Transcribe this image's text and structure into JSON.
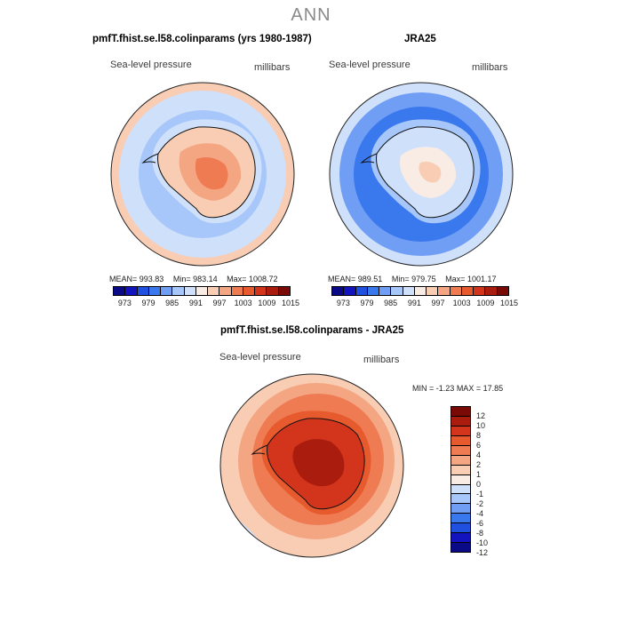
{
  "figure_title": "ANN",
  "palette": {
    "diverging": [
      "#0a0a86",
      "#1414be",
      "#2050e0",
      "#3a78ee",
      "#6f9ef4",
      "#a7c6f9",
      "#cfe0fb",
      "#f8ece4",
      "#f8cdb4",
      "#f4a683",
      "#ef7b53",
      "#e65a2e",
      "#d2351c",
      "#aa1d0e",
      "#7a0a05"
    ]
  },
  "chart_data": [
    {
      "type": "heatmap",
      "projection": "south-polar-stereographic",
      "title": "pmfT.fhist.se.l58.colinparams (yrs 1980-1987)",
      "field_label": "Sea-level pressure",
      "units": "millibars",
      "stats": {
        "mean_label": "MEAN=",
        "mean": "993.83",
        "min_label": "Min=",
        "min": "983.14",
        "max_label": "Max=",
        "max": "1008.72"
      },
      "colorbar": {
        "orientation": "horizontal",
        "tick_labels": [
          "973",
          "979",
          "985",
          "991",
          "997",
          "1003",
          "1009",
          "1015"
        ]
      },
      "field_summary": {
        "ocean_ring_mb": 989,
        "antarctic_interior_mb": 1003,
        "outer_edge_mb": 997
      }
    },
    {
      "type": "heatmap",
      "projection": "south-polar-stereographic",
      "title": "JRA25",
      "field_label": "Sea-level pressure",
      "units": "millibars",
      "stats": {
        "mean_label": "MEAN=",
        "mean": "989.51",
        "min_label": "Min=",
        "min": "979.75",
        "max_label": "Max=",
        "max": "1001.17"
      },
      "colorbar": {
        "orientation": "horizontal",
        "tick_labels": [
          "973",
          "979",
          "985",
          "991",
          "997",
          "1003",
          "1009",
          "1015"
        ]
      },
      "field_summary": {
        "ocean_ring_mb": 983,
        "antarctic_interior_mb": 994,
        "outer_edge_mb": 992
      }
    },
    {
      "type": "heatmap",
      "projection": "south-polar-stereographic",
      "title": "pmfT.fhist.se.l58.colinparams - JRA25",
      "field_label": "Sea-level pressure",
      "units": "millibars",
      "stats": {
        "min_label": "MIN =",
        "min": "-1.23",
        "max_label": "MAX =",
        "max": "17.85"
      },
      "colorbar": {
        "orientation": "vertical",
        "tick_labels": [
          "12",
          "10",
          "8",
          "6",
          "4",
          "2",
          "1",
          "0",
          "-1",
          "-2",
          "-4",
          "-6",
          "-8",
          "-10",
          "-12"
        ]
      },
      "field_summary": {
        "ocean_ring_mb": 5,
        "antarctic_interior_mb": 9,
        "outer_edge_mb": 2
      }
    }
  ]
}
